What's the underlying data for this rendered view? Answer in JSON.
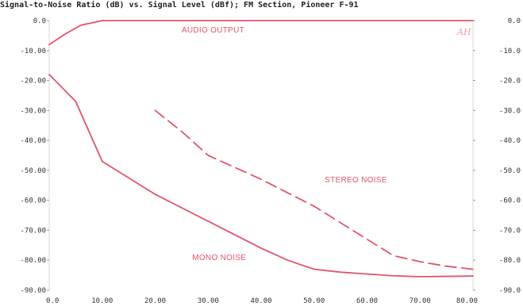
{
  "chart_data": {
    "type": "line",
    "title": "Signal-to-Noise Ratio (dB) vs. Signal Level (dBf); FM Section, Pioneer F-91",
    "xlim": [
      0,
      80
    ],
    "ylim": [
      -90,
      0
    ],
    "x_ticks": [
      "0.0",
      "10.00",
      "20.00",
      "30.00",
      "40.00",
      "50.00",
      "60.00",
      "70.00",
      "80.00"
    ],
    "y_ticks_left": [
      "0.0",
      "-10.00",
      "-20.00",
      "-30.00",
      "-40.00",
      "-50.00",
      "-60.00",
      "-70.00",
      "-80.00",
      "-90.00"
    ],
    "y_ticks_right": [
      "0.0",
      "-10.0",
      "-20.0",
      "-30.0",
      "-40.0",
      "-50.0",
      "-60.0",
      "-70.0",
      "-80.0",
      "-90.0"
    ],
    "grid": false,
    "line_color": "#e0556a",
    "series": [
      {
        "name": "AUDIO OUTPUT",
        "style": "solid",
        "x": [
          0,
          3,
          6,
          10,
          15,
          20,
          30,
          40,
          50,
          60,
          70,
          80
        ],
        "y": [
          -8,
          -4.5,
          -1.5,
          0,
          0,
          0,
          0,
          0,
          0,
          0,
          0,
          0
        ]
      },
      {
        "name": "MONO NOISE",
        "style": "solid",
        "x": [
          0,
          5,
          10,
          20,
          30,
          40,
          45,
          50,
          55,
          60,
          65,
          70,
          80
        ],
        "y": [
          -18,
          -27,
          -47,
          -58,
          -67,
          -76,
          -80,
          -83,
          -84,
          -84.6,
          -85.2,
          -85.5,
          -85.3
        ]
      },
      {
        "name": "STEREO NOISE",
        "style": "dashed",
        "x": [
          20,
          25,
          30,
          40,
          50,
          60,
          65,
          70,
          75,
          80
        ],
        "y": [
          -30,
          -37,
          -45,
          -53,
          -62,
          -73,
          -78.5,
          -80.5,
          -82,
          -83
        ]
      }
    ],
    "annotations": [
      {
        "text": "AUDIO OUTPUT",
        "x": 25,
        "y": -4
      },
      {
        "text": "STEREO NOISE",
        "x": 52,
        "y": -54
      },
      {
        "text": "MONO NOISE",
        "x": 27,
        "y": -80
      }
    ],
    "logo_text": "AH"
  }
}
